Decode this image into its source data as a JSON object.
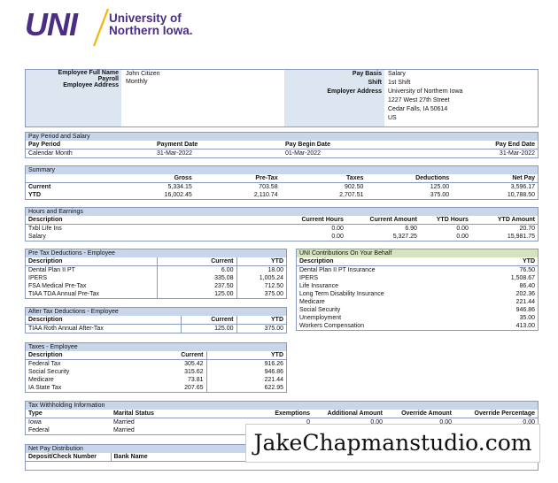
{
  "brand": {
    "logo_text": "UNI",
    "name_line1": "University of",
    "name_line2": "Northern Iowa."
  },
  "employee": {
    "labels": {
      "full_name": "Employee Full Name",
      "payroll": "Payroll",
      "address": "Employee Address",
      "pay_basis": "Pay Basis",
      "shift": "Shift",
      "employer_address": "Employer Address"
    },
    "full_name": "John Citizen",
    "payroll": "Monthly",
    "pay_basis": "Salary",
    "shift": "1st Shift",
    "employer_address": [
      "University of Northern Iowa",
      "1227 West 27th Street",
      "Cedar Falls, IA 50614",
      "US"
    ]
  },
  "period": {
    "title": "Pay Period and Salary",
    "headers": [
      "Pay Period",
      "Payment Date",
      "Pay Begin Date",
      "Pay End Date"
    ],
    "values": [
      "Calendar Month",
      "31-Mar-2022",
      "01-Mar-2022",
      "31-Mar-2022"
    ]
  },
  "summary": {
    "title": "Summary",
    "headers": [
      "",
      "Gross",
      "Pre-Tax",
      "Taxes",
      "Deductions",
      "Net Pay"
    ],
    "rows": [
      [
        "Current",
        "5,334.15",
        "703.58",
        "902.50",
        "125.00",
        "3,596.17"
      ],
      [
        "YTD",
        "16,002.45",
        "2,110.74",
        "2,707.51",
        "375.00",
        "10,788.50"
      ]
    ]
  },
  "hours": {
    "title": "Hours and Earnings",
    "headers": [
      "Description",
      "Current Hours",
      "Current Amount",
      "YTD Hours",
      "YTD Amount"
    ],
    "rows": [
      [
        "Txbl Life Ins",
        "0.00",
        "6.90",
        "0.00",
        "20.70"
      ],
      [
        "Salary",
        "0.00",
        "5,327.25",
        "0.00",
        "15,981.75"
      ]
    ]
  },
  "pretax": {
    "title": "Pre Tax Deductions - Employee",
    "headers": [
      "Description",
      "Current",
      "YTD"
    ],
    "rows": [
      [
        "Dental Plan II PT",
        "6.00",
        "18.00"
      ],
      [
        "IPERS",
        "335.08",
        "1,005.24"
      ],
      [
        "FSA Medical Pre-Tax",
        "237.50",
        "712.50"
      ],
      [
        "TIAA TDA Annual Pre-Tax",
        "125.00",
        "375.00"
      ]
    ]
  },
  "contrib": {
    "title": "UNI Contributions On Your Behalf",
    "headers": [
      "Description",
      "YTD"
    ],
    "rows": [
      [
        "Dental Plan II PT Insurance",
        "76.50"
      ],
      [
        "IPERS",
        "1,508.67"
      ],
      [
        "Life Insurance",
        "86.40"
      ],
      [
        "Long Term Disability Insurance",
        "202.36"
      ],
      [
        "Medicare",
        "221.44"
      ],
      [
        "Social Security",
        "946.86"
      ],
      [
        "Unemployment",
        "35.00"
      ],
      [
        "Workers Compensation",
        "413.00"
      ]
    ]
  },
  "aftertax": {
    "title": "After Tax Deductions - Employee",
    "headers": [
      "Description",
      "Current",
      "YTD"
    ],
    "rows": [
      [
        "TIAA Roth Annual After-Tax",
        "125.00",
        "375.00"
      ]
    ]
  },
  "taxes": {
    "title": "Taxes - Employee",
    "headers": [
      "Description",
      "Current",
      "YTD"
    ],
    "rows": [
      [
        "Federal Tax",
        "305.42",
        "916.26"
      ],
      [
        "Social Security",
        "315.62",
        "946.86"
      ],
      [
        "Medicare",
        "73.81",
        "221.44"
      ],
      [
        "IA State Tax",
        "207.65",
        "622.95"
      ]
    ]
  },
  "withholding": {
    "title": "Tax Withholding Information",
    "headers": [
      "Type",
      "Marital Status",
      "Exemptions",
      "Additional Amount",
      "Override Amount",
      "Override Percentage"
    ],
    "rows": [
      [
        "Iowa",
        "Married",
        "0",
        "0.00",
        "0.00",
        "0.00"
      ],
      [
        "Federal",
        "Married",
        "",
        "",
        "",
        ""
      ]
    ]
  },
  "netpay": {
    "title": "Net Pay Distribution",
    "headers": [
      "Deposit/Check Number",
      "Bank Name"
    ]
  },
  "watermark": "JakeChapmanstudio.com"
}
